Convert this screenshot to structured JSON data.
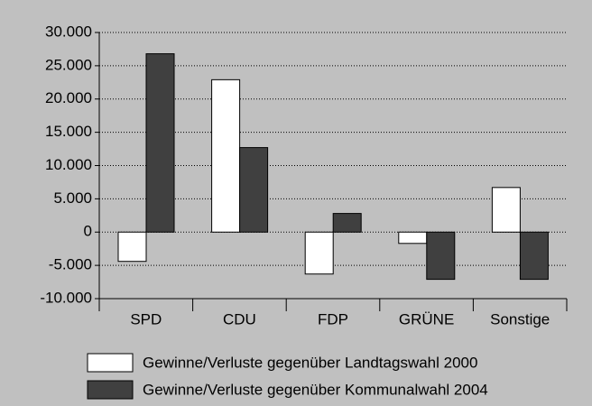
{
  "chart_data": {
    "type": "bar",
    "categories": [
      "SPD",
      "CDU",
      "FDP",
      "GRÜNE",
      "Sonstige"
    ],
    "series": [
      {
        "name": "Gewinne/Verluste gegenüber Landtagswahl 2000",
        "color": "#ffffff",
        "values": [
          -4400,
          22900,
          -6300,
          -1700,
          6700
        ]
      },
      {
        "name": "Gewinne/Verluste gegenüber Kommunalwahl 2004",
        "color": "#404040",
        "values": [
          26800,
          12700,
          2800,
          -7100,
          -7100
        ]
      }
    ],
    "ylim": [
      -10000,
      30000
    ],
    "yticks": [
      {
        "value": -10000,
        "label": "-10.000"
      },
      {
        "value": -5000,
        "label": "-5.000"
      },
      0,
      {
        "value": 5000,
        "label": "5.000"
      },
      {
        "value": 10000,
        "label": "10.000"
      },
      {
        "value": 15000,
        "label": "15.000"
      },
      {
        "value": 20000,
        "label": "20.000"
      },
      {
        "value": 25000,
        "label": "25.000"
      },
      {
        "value": 30000,
        "label": "30.000"
      }
    ],
    "grid": true,
    "legend": "bottom"
  }
}
